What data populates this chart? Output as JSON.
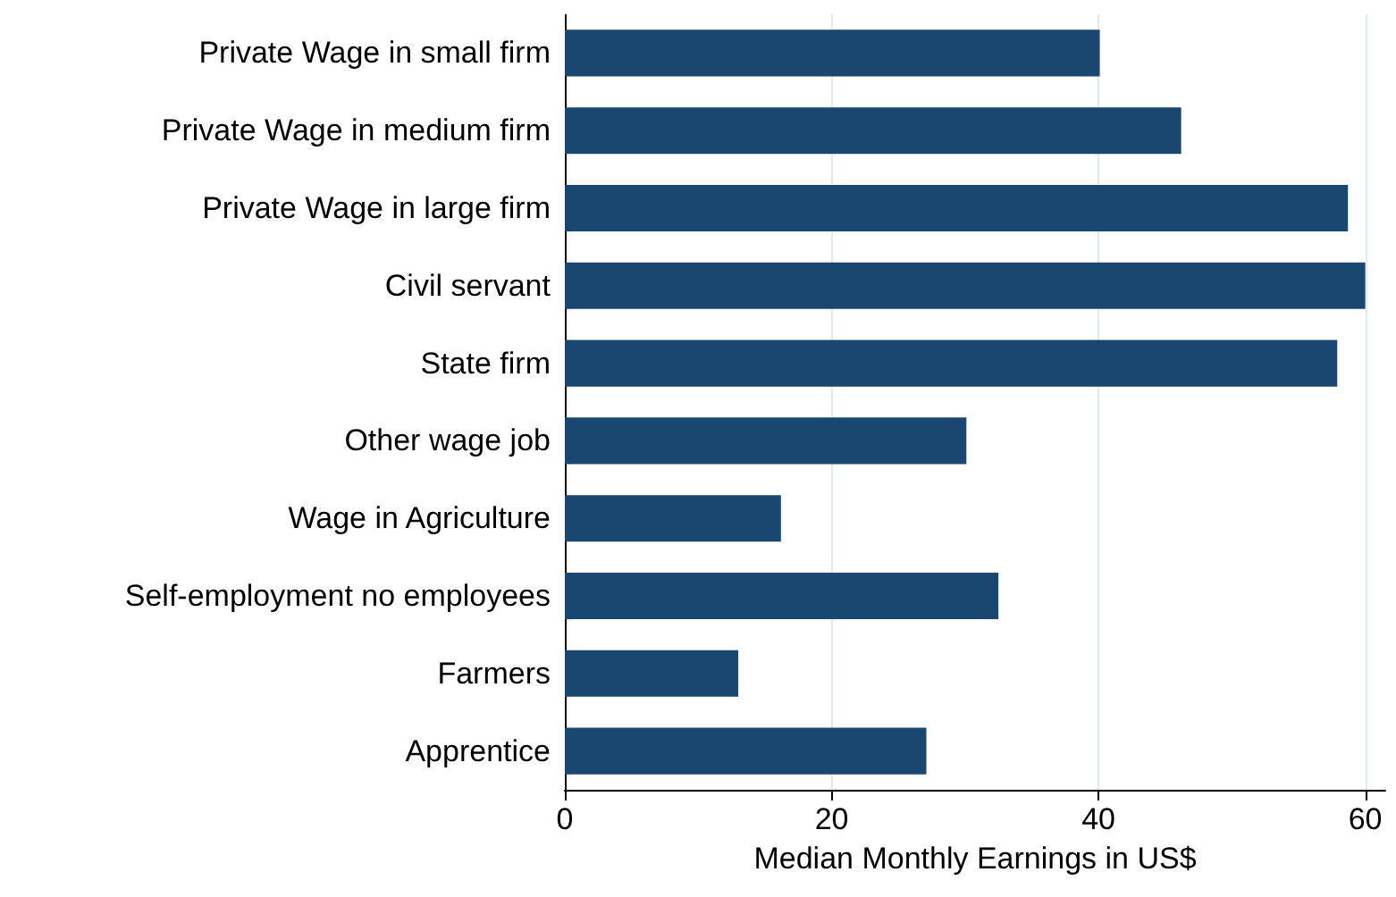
{
  "chart_data": {
    "type": "bar",
    "orientation": "horizontal",
    "xlabel": "Median Monthly Earnings in US$",
    "categories": [
      "Private Wage in small firm",
      "Private Wage in medium firm",
      "Private Wage in large firm",
      "Civil servant",
      "State firm",
      "Other wage job",
      "Wage in Agriculture",
      "Self-employment no employees",
      "Farmers",
      "Apprentice"
    ],
    "values": [
      40.1,
      46.2,
      58.7,
      60,
      57.9,
      30.1,
      16.2,
      32.5,
      13,
      27.1
    ],
    "color": "#1a476f",
    "xlim": [
      0,
      61.5
    ],
    "xticks": [
      0,
      20,
      40,
      60
    ],
    "grid": "x"
  }
}
